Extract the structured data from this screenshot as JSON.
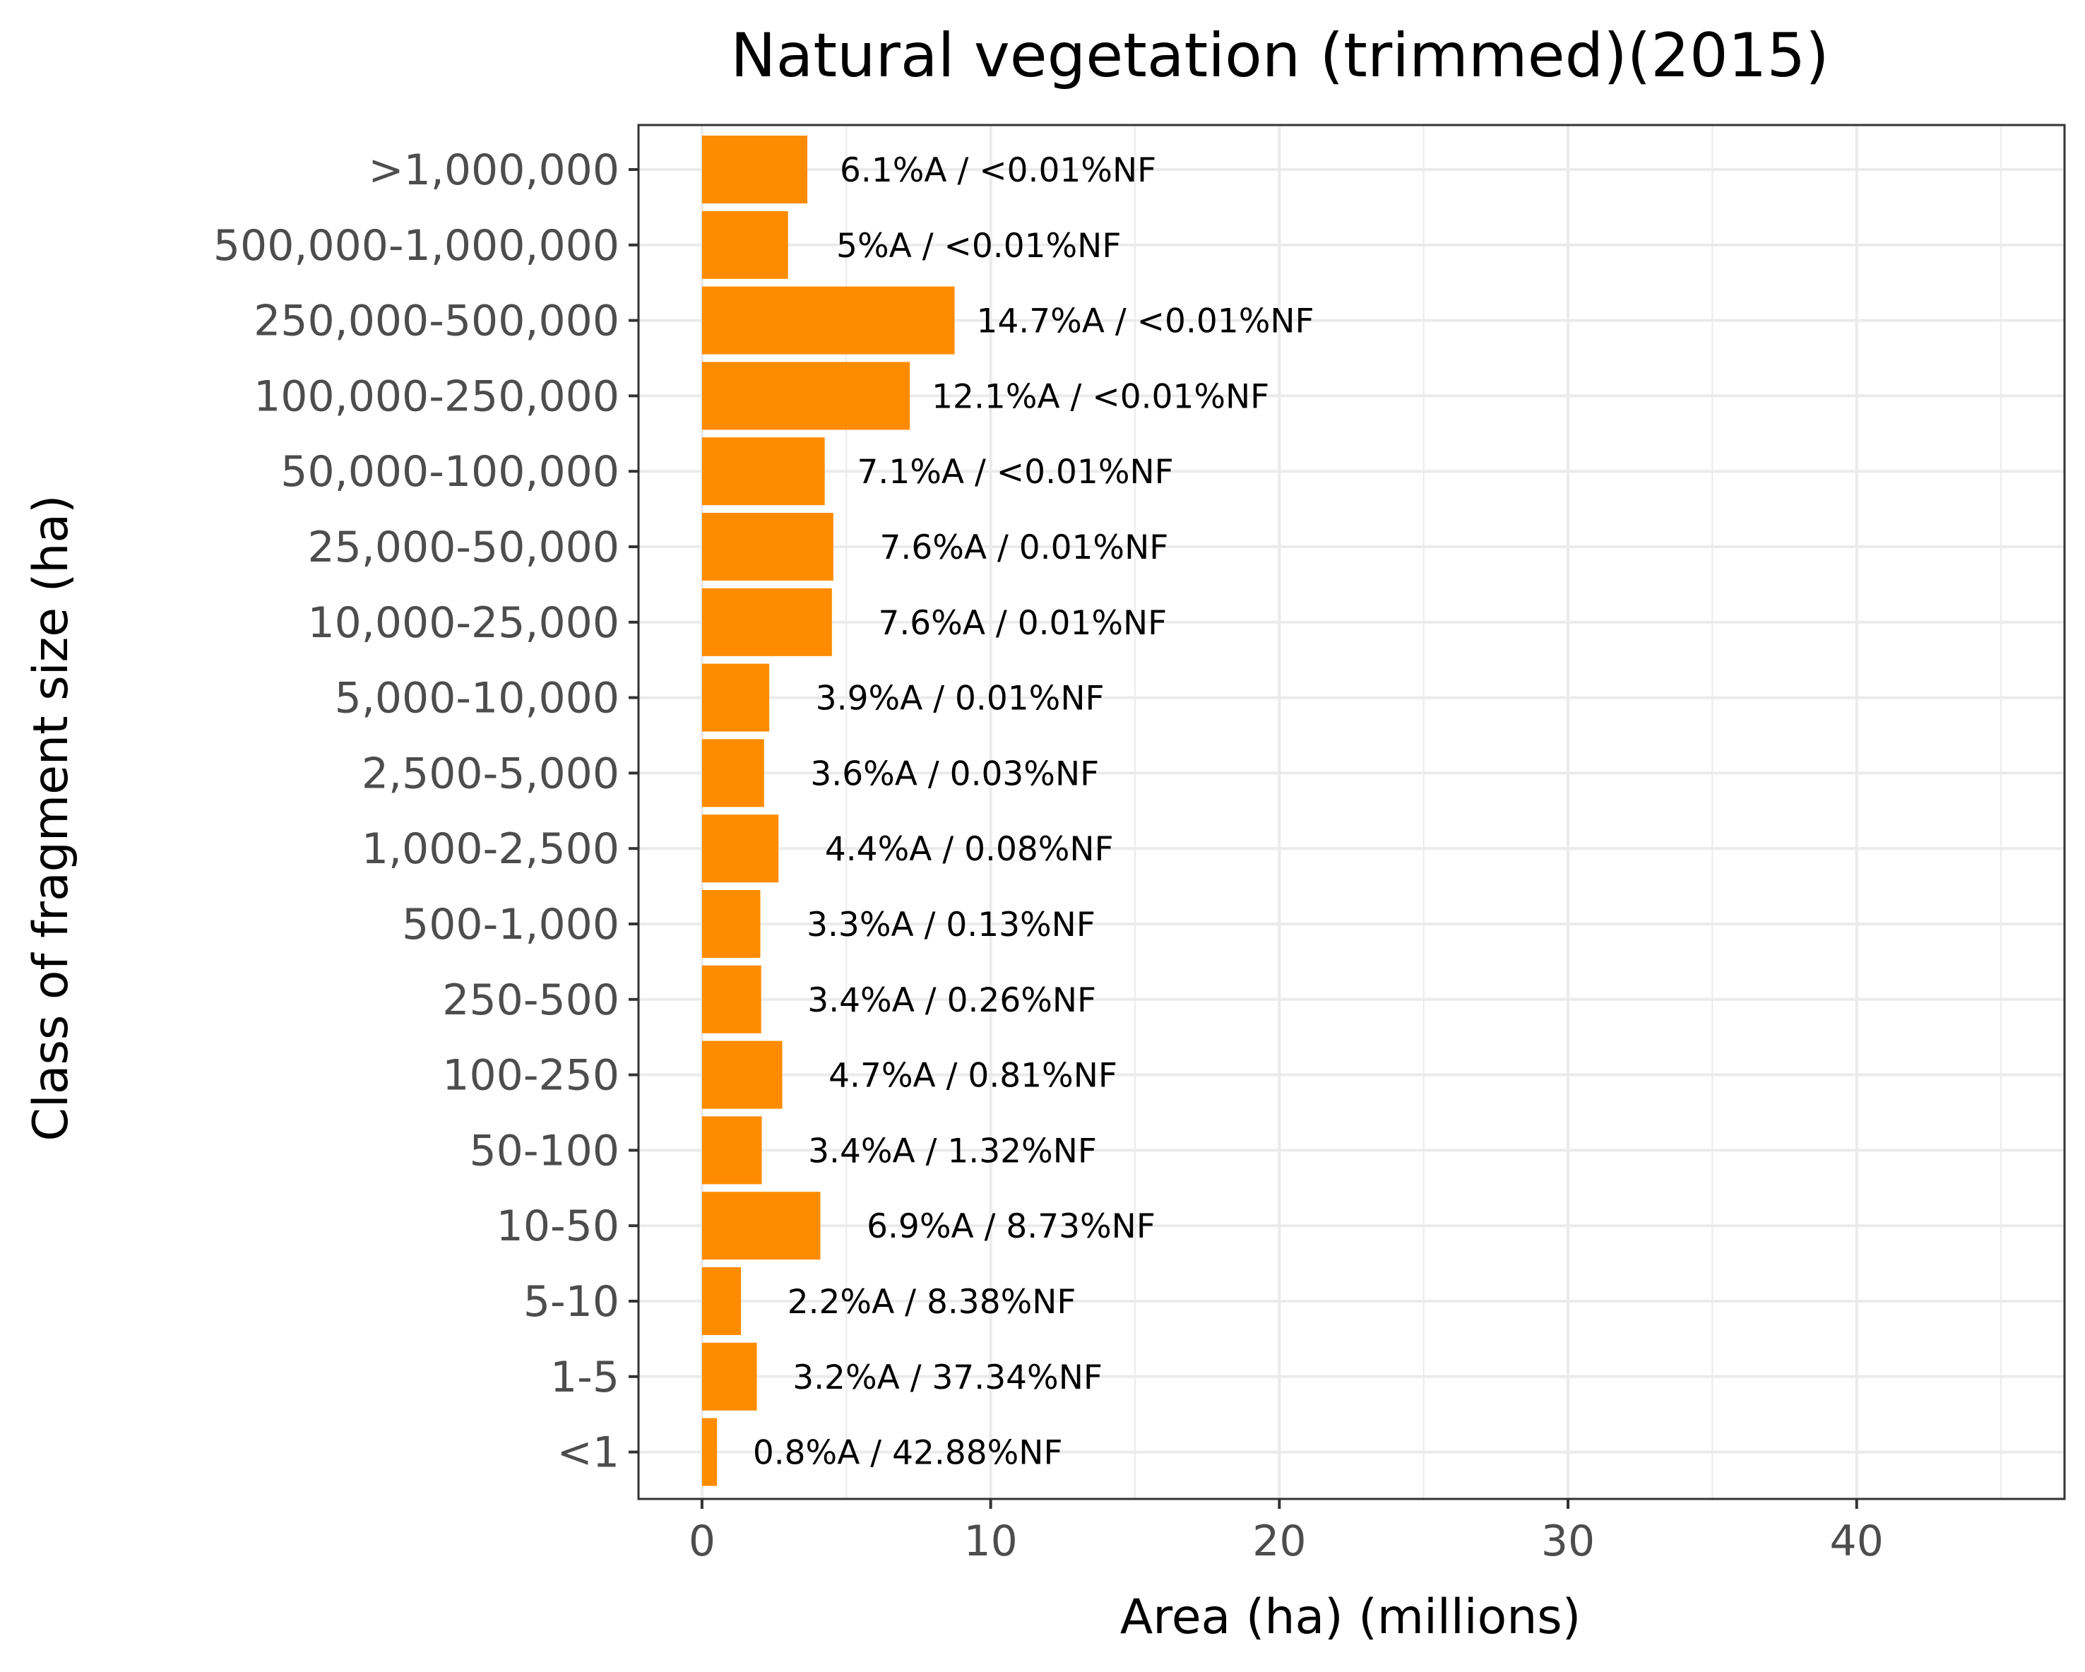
{
  "chart_data": {
    "type": "bar",
    "orientation": "horizontal",
    "title": "Natural vegetation (trimmed)(2015)",
    "xlabel": "Area (ha) (millions)",
    "ylabel": "Class of fragment size (ha)",
    "xlim": [
      -2.2,
      47.2
    ],
    "x_ticks": [
      0,
      10,
      20,
      30,
      40
    ],
    "x_tick_labels": [
      "0",
      "10",
      "20",
      "30",
      "40"
    ],
    "grid": true,
    "bar_color": "#FF8C00",
    "categories": [
      ">1,000,000",
      "500,000-1,000,000",
      "250,000-500,000",
      "100,000-250,000",
      "50,000-100,000",
      "25,000-50,000",
      "10,000-25,000",
      "5,000-10,000",
      "2,500-5,000",
      "1,000-2,500",
      "500-1,000",
      "250-500",
      "100-250",
      "50-100",
      "10-50",
      "5-10",
      "1-5",
      "<1"
    ],
    "values": [
      3.65,
      2.98,
      8.75,
      7.2,
      4.25,
      4.55,
      4.5,
      2.33,
      2.15,
      2.65,
      2.02,
      2.05,
      2.78,
      2.07,
      4.1,
      1.35,
      1.9,
      0.52
    ],
    "data_labels": [
      "6.1%A / <0.01%NF",
      "5%A / <0.01%NF",
      "14.7%A / <0.01%NF",
      "12.1%A / <0.01%NF",
      "7.1%A / <0.01%NF",
      "7.6%A / 0.01%NF",
      "7.6%A / 0.01%NF",
      "3.9%A / 0.01%NF",
      "3.6%A / 0.03%NF",
      "4.4%A / 0.08%NF",
      "3.3%A / 0.13%NF",
      "3.4%A / 0.26%NF",
      "4.7%A / 0.81%NF",
      "3.4%A / 1.32%NF",
      "6.9%A / 8.73%NF",
      "2.2%A / 8.38%NF",
      "3.2%A / 37.34%NF",
      "0.8%A / 42.88%NF"
    ]
  }
}
